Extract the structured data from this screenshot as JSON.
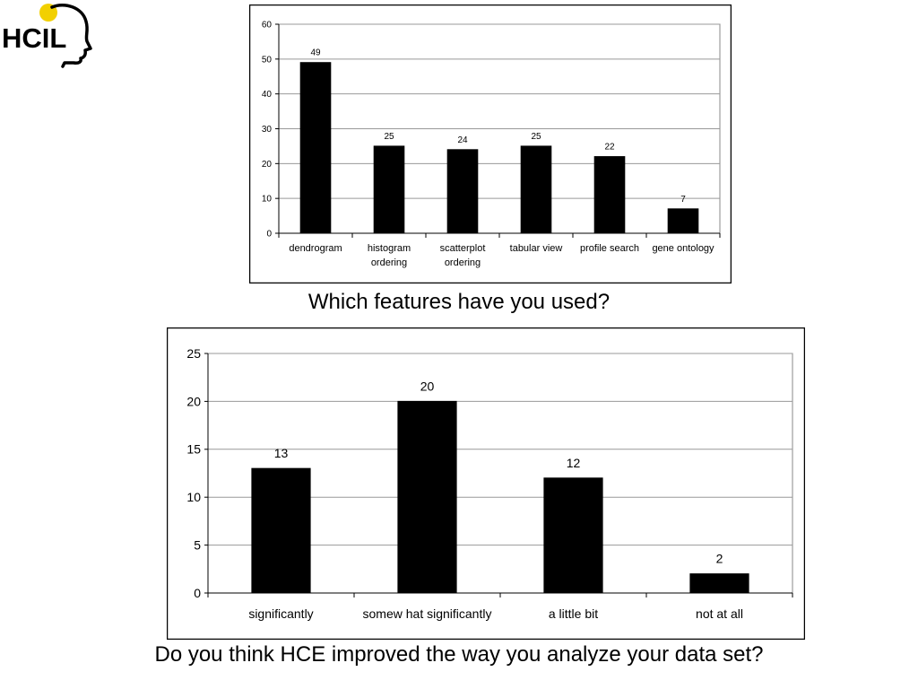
{
  "logo": {
    "text": "HCIL"
  },
  "chart_data": [
    {
      "type": "bar",
      "categories": [
        "dendrogram",
        "histogram ordering",
        "scatterplot ordering",
        "tabular view",
        "profile search",
        "gene ontology"
      ],
      "values": [
        49,
        25,
        24,
        25,
        22,
        7
      ],
      "ylim": [
        0,
        60
      ],
      "yticks": [
        0,
        10,
        20,
        30,
        40,
        50,
        60
      ],
      "grid": true,
      "legend": "none",
      "bar_color": "#000000",
      "caption": "Which features have you used?"
    },
    {
      "type": "bar",
      "categories": [
        "significantly",
        "somew hat significantly",
        "a little bit",
        "not at all"
      ],
      "values": [
        13,
        20,
        12,
        2
      ],
      "ylim": [
        0,
        25
      ],
      "yticks": [
        0,
        5,
        10,
        15,
        20,
        25
      ],
      "grid": true,
      "legend": "none",
      "bar_color": "#000000",
      "caption": "Do you think HCE improved the way you analyze your data set?"
    }
  ]
}
